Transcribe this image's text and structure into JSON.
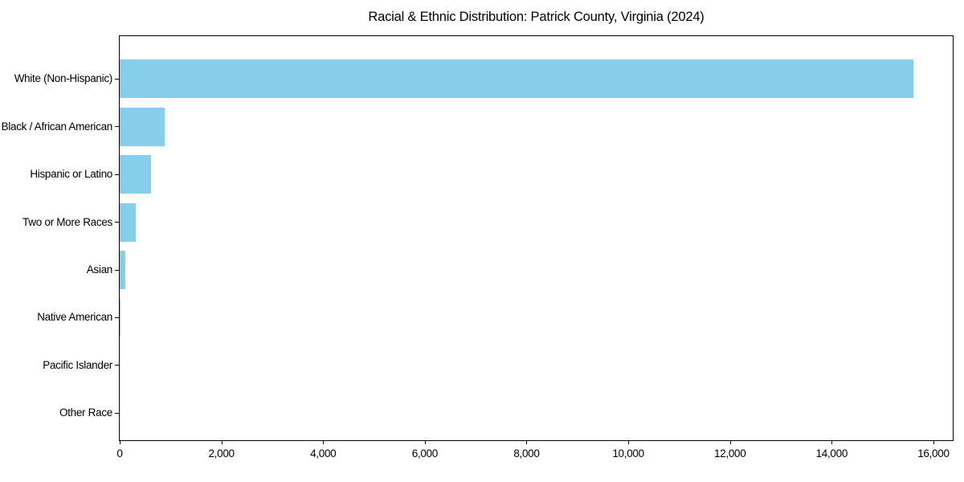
{
  "page": {
    "background": "#ffffff",
    "text_color": "#000000"
  },
  "chart_data": {
    "type": "bar",
    "orientation": "horizontal",
    "title": "Racial & Ethnic Distribution: Patrick County, Virginia (2024)",
    "categories": [
      "White (Non-Hispanic)",
      "Black / African American",
      "Hispanic or Latino",
      "Two or More Races",
      "Asian",
      "Native American",
      "Pacific Islander",
      "Other Race"
    ],
    "values": [
      15600,
      885,
      620,
      315,
      115,
      20,
      0,
      0
    ],
    "xlabel": "",
    "ylabel": "",
    "xlim": [
      0,
      16380
    ],
    "x_ticks": [
      0,
      2000,
      4000,
      6000,
      8000,
      10000,
      12000,
      14000,
      16000
    ],
    "x_tick_labels": [
      "0",
      "2,000",
      "4,000",
      "6,000",
      "8,000",
      "10,000",
      "12,000",
      "14,000",
      "16,000"
    ],
    "bar_color": "#87CEEB",
    "axis_color": "#000000",
    "grid": false,
    "legend": false
  }
}
